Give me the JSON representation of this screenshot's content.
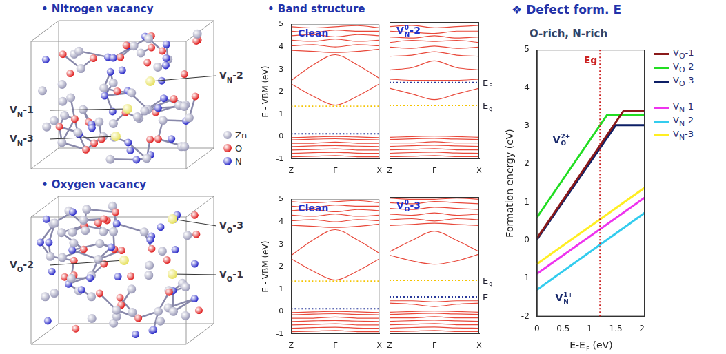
{
  "structures": [
    {
      "title": "• Nitrogen vacancy",
      "labels": [
        {
          "base": "V",
          "sub": "N",
          "tail": "-1"
        },
        {
          "base": "V",
          "sub": "N",
          "tail": "-2"
        },
        {
          "base": "V",
          "sub": "N",
          "tail": "-3"
        }
      ]
    },
    {
      "title": "• Oxygen vacancy",
      "labels": [
        {
          "base": "V",
          "sub": "O",
          "tail": "-1"
        },
        {
          "base": "V",
          "sub": "O",
          "tail": "-2"
        },
        {
          "base": "V",
          "sub": "O",
          "tail": "-3"
        }
      ]
    }
  ],
  "atom_legend": [
    {
      "label": "Zn",
      "color": "#9a9ab8"
    },
    {
      "label": "O",
      "color": "#e02020"
    },
    {
      "label": "N",
      "color": "#2a2ac8"
    }
  ],
  "band_structure_title": "• Band structure",
  "chart_data": [
    {
      "type": "line",
      "title": "Clean",
      "x": [
        0,
        0.5,
        1,
        1.5,
        2
      ],
      "xlim": [
        0,
        2
      ],
      "xticks": [
        {
          "value": 0,
          "label": "Z"
        },
        {
          "value": 1,
          "label": "Γ"
        },
        {
          "value": 2,
          "label": "X"
        }
      ],
      "ylim": [
        -1,
        5
      ],
      "yticks": [
        -1,
        0,
        1,
        2,
        3,
        4,
        5
      ],
      "y_label": "E - VBM (eV)",
      "grid": false,
      "series": [
        {
          "color": "#e8483a",
          "values": [
            -0.05,
            -0.02,
            0,
            -0.02,
            -0.05
          ]
        },
        {
          "color": "#e8483a",
          "values": [
            -0.15,
            -0.12,
            -0.1,
            -0.13,
            -0.15
          ]
        },
        {
          "color": "#e8483a",
          "values": [
            -0.3,
            -0.3,
            -0.25,
            -0.3,
            -0.3
          ]
        },
        {
          "color": "#e8483a",
          "values": [
            -0.45,
            -0.42,
            -0.4,
            -0.43,
            -0.45
          ]
        },
        {
          "color": "#e8483a",
          "values": [
            -0.6,
            -0.58,
            -0.55,
            -0.6,
            -0.6
          ]
        },
        {
          "color": "#e8483a",
          "values": [
            -0.75,
            -0.72,
            -0.7,
            -0.74,
            -0.75
          ]
        },
        {
          "color": "#e8483a",
          "values": [
            -0.9,
            -0.88,
            -0.85,
            -0.9,
            -0.9
          ]
        },
        {
          "color": "#e8483a",
          "values": [
            2.35,
            1.8,
            1.4,
            1.8,
            2.35
          ]
        },
        {
          "color": "#e8483a",
          "values": [
            2.5,
            3.2,
            3.65,
            3.2,
            2.6
          ]
        },
        {
          "color": "#e8483a",
          "values": [
            3.85,
            3.8,
            3.75,
            3.8,
            3.9
          ]
        },
        {
          "color": "#e8483a",
          "values": [
            4.05,
            4.1,
            4.0,
            4.1,
            4.05
          ]
        },
        {
          "color": "#e8483a",
          "values": [
            4.3,
            4.25,
            4.35,
            4.25,
            4.3
          ]
        },
        {
          "color": "#e8483a",
          "values": [
            4.5,
            4.55,
            4.45,
            4.55,
            4.5
          ]
        },
        {
          "color": "#e8483a",
          "values": [
            4.7,
            4.65,
            4.75,
            4.7,
            4.7
          ]
        },
        {
          "color": "#e8483a",
          "values": [
            4.9,
            4.85,
            4.9,
            4.95,
            4.85
          ]
        },
        {
          "color": "#f5c400",
          "line_style": "dotted",
          "values": [
            1.35,
            1.35,
            1.35,
            1.35,
            1.35
          ]
        },
        {
          "color": "#2a3a9a",
          "line_style": "dotted",
          "values": [
            0.12,
            0.12,
            0.12,
            0.12,
            0.12
          ]
        }
      ]
    },
    {
      "type": "line",
      "title": {
        "base": "V",
        "sub": "N",
        "sup": "0",
        "tail": "-2"
      },
      "x": [
        0,
        0.5,
        1,
        1.5,
        2
      ],
      "xlim": [
        0,
        2
      ],
      "xticks": [
        {
          "value": 0,
          "label": "Z"
        },
        {
          "value": 1,
          "label": "Γ"
        },
        {
          "value": 2,
          "label": "X"
        }
      ],
      "ylim": [
        -1,
        5
      ],
      "yticks": [
        -1,
        0,
        1,
        2,
        3,
        4,
        5
      ],
      "grid": false,
      "tick_labels": "x",
      "series": [
        {
          "color": "#e8483a",
          "values": [
            -0.05,
            -0.02,
            0,
            -0.02,
            -0.05
          ]
        },
        {
          "color": "#e8483a",
          "values": [
            -0.15,
            -0.12,
            -0.1,
            -0.13,
            -0.15
          ]
        },
        {
          "color": "#e8483a",
          "values": [
            -0.3,
            -0.3,
            -0.25,
            -0.3,
            -0.3
          ]
        },
        {
          "color": "#e8483a",
          "values": [
            -0.45,
            -0.42,
            -0.4,
            -0.43,
            -0.45
          ]
        },
        {
          "color": "#e8483a",
          "values": [
            -0.6,
            -0.58,
            -0.55,
            -0.6,
            -0.6
          ]
        },
        {
          "color": "#e8483a",
          "values": [
            -0.75,
            -0.72,
            -0.7,
            -0.74,
            -0.75
          ]
        },
        {
          "color": "#e8483a",
          "values": [
            -0.9,
            -0.88,
            -0.85,
            -0.9,
            -0.9
          ]
        },
        {
          "color": "#e8483a",
          "values": [
            2.1,
            1.85,
            1.6,
            1.85,
            2.1
          ]
        },
        {
          "color": "#e8483a",
          "values": [
            2.5,
            2.45,
            2.45,
            2.45,
            2.5
          ]
        },
        {
          "color": "#e8483a",
          "values": [
            2.9,
            3.0,
            3.3,
            3.0,
            2.9
          ]
        },
        {
          "color": "#e8483a",
          "values": [
            3.5,
            3.55,
            3.7,
            3.55,
            3.5
          ]
        },
        {
          "color": "#e8483a",
          "values": [
            3.9,
            3.85,
            3.95,
            3.85,
            3.9
          ]
        },
        {
          "color": "#e8483a",
          "values": [
            4.1,
            4.2,
            4.15,
            4.2,
            4.1
          ]
        },
        {
          "color": "#e8483a",
          "values": [
            4.35,
            4.3,
            4.4,
            4.3,
            4.35
          ]
        },
        {
          "color": "#e8483a",
          "values": [
            4.6,
            4.55,
            4.5,
            4.6,
            4.6
          ]
        },
        {
          "color": "#e8483a",
          "values": [
            4.8,
            4.85,
            4.75,
            4.8,
            4.85
          ]
        },
        {
          "color": "#f5c400",
          "line_style": "dotted",
          "label": {
            "base": "E",
            "sub": "g"
          },
          "values": [
            1.35,
            1.35,
            1.35,
            1.35,
            1.35
          ]
        },
        {
          "color": "#2a3a9a",
          "line_style": "dotted",
          "label": {
            "base": "E",
            "sub": "F"
          },
          "values": [
            2.35,
            2.35,
            2.35,
            2.35,
            2.35
          ]
        }
      ]
    },
    {
      "type": "line",
      "title": "Clean",
      "x": [
        0,
        0.5,
        1,
        1.5,
        2
      ],
      "xlim": [
        0,
        2
      ],
      "xticks": [
        {
          "value": 0,
          "label": "Z"
        },
        {
          "value": 1,
          "label": "Γ"
        },
        {
          "value": 2,
          "label": "X"
        }
      ],
      "ylim": [
        -1,
        5
      ],
      "yticks": [
        -1,
        0,
        1,
        2,
        3,
        4,
        5
      ],
      "y_label": "E - VBM (eV)",
      "grid": false,
      "series": [
        {
          "color": "#e8483a",
          "values": [
            -0.05,
            -0.02,
            0,
            -0.02,
            -0.05
          ]
        },
        {
          "color": "#e8483a",
          "values": [
            -0.15,
            -0.12,
            -0.1,
            -0.13,
            -0.15
          ]
        },
        {
          "color": "#e8483a",
          "values": [
            -0.3,
            -0.3,
            -0.25,
            -0.3,
            -0.3
          ]
        },
        {
          "color": "#e8483a",
          "values": [
            -0.45,
            -0.42,
            -0.4,
            -0.43,
            -0.45
          ]
        },
        {
          "color": "#e8483a",
          "values": [
            -0.6,
            -0.58,
            -0.55,
            -0.6,
            -0.6
          ]
        },
        {
          "color": "#e8483a",
          "values": [
            -0.75,
            -0.72,
            -0.7,
            -0.74,
            -0.75
          ]
        },
        {
          "color": "#e8483a",
          "values": [
            -0.9,
            -0.88,
            -0.85,
            -0.9,
            -0.9
          ]
        },
        {
          "color": "#e8483a",
          "values": [
            2.35,
            1.8,
            1.4,
            1.8,
            2.35
          ]
        },
        {
          "color": "#e8483a",
          "values": [
            2.5,
            3.2,
            3.65,
            3.2,
            2.6
          ]
        },
        {
          "color": "#e8483a",
          "values": [
            3.85,
            3.8,
            3.75,
            3.8,
            3.9
          ]
        },
        {
          "color": "#e8483a",
          "values": [
            4.05,
            4.1,
            4.0,
            4.1,
            4.05
          ]
        },
        {
          "color": "#e8483a",
          "values": [
            4.3,
            4.25,
            4.35,
            4.25,
            4.3
          ]
        },
        {
          "color": "#e8483a",
          "values": [
            4.5,
            4.55,
            4.45,
            4.55,
            4.5
          ]
        },
        {
          "color": "#e8483a",
          "values": [
            4.7,
            4.65,
            4.75,
            4.7,
            4.7
          ]
        },
        {
          "color": "#e8483a",
          "values": [
            4.9,
            4.85,
            4.9,
            4.95,
            4.85
          ]
        },
        {
          "color": "#f5c400",
          "line_style": "dotted",
          "values": [
            1.35,
            1.35,
            1.35,
            1.35,
            1.35
          ]
        },
        {
          "color": "#2a3a9a",
          "line_style": "dotted",
          "values": [
            0.12,
            0.12,
            0.12,
            0.12,
            0.12
          ]
        }
      ]
    },
    {
      "type": "line",
      "title": {
        "base": "V",
        "sub": "O",
        "sup": "0",
        "tail": "-3"
      },
      "x": [
        0,
        0.5,
        1,
        1.5,
        2
      ],
      "xlim": [
        0,
        2
      ],
      "xticks": [
        {
          "value": 0,
          "label": "Z"
        },
        {
          "value": 1,
          "label": "Γ"
        },
        {
          "value": 2,
          "label": "X"
        }
      ],
      "ylim": [
        -1,
        5
      ],
      "yticks": [
        -1,
        0,
        1,
        2,
        3,
        4,
        5
      ],
      "grid": false,
      "tick_labels": "x",
      "series": [
        {
          "color": "#e8483a",
          "values": [
            -0.05,
            -0.02,
            0,
            -0.02,
            -0.05
          ]
        },
        {
          "color": "#e8483a",
          "values": [
            -0.15,
            -0.12,
            -0.1,
            -0.13,
            -0.15
          ]
        },
        {
          "color": "#e8483a",
          "values": [
            -0.3,
            -0.3,
            -0.25,
            -0.3,
            -0.3
          ]
        },
        {
          "color": "#e8483a",
          "values": [
            -0.45,
            -0.42,
            -0.4,
            -0.43,
            -0.45
          ]
        },
        {
          "color": "#e8483a",
          "values": [
            -0.6,
            -0.58,
            -0.55,
            -0.6,
            -0.6
          ]
        },
        {
          "color": "#e8483a",
          "values": [
            -0.75,
            -0.72,
            -0.7,
            -0.74,
            -0.75
          ]
        },
        {
          "color": "#e8483a",
          "values": [
            -0.9,
            -0.88,
            -0.85,
            -0.9,
            -0.9
          ]
        },
        {
          "color": "#e8483a",
          "values": [
            0.35,
            0.3,
            0.2,
            0.3,
            0.35
          ]
        },
        {
          "color": "#e8483a",
          "values": [
            0.45,
            0.45,
            0.4,
            0.45,
            0.45
          ]
        },
        {
          "color": "#e8483a",
          "values": [
            2.45,
            2.2,
            2.05,
            2.2,
            2.5
          ]
        },
        {
          "color": "#e8483a",
          "values": [
            2.6,
            3.1,
            3.5,
            3.1,
            2.6
          ]
        },
        {
          "color": "#e8483a",
          "values": [
            3.75,
            3.8,
            3.85,
            3.8,
            3.75
          ]
        },
        {
          "color": "#e8483a",
          "values": [
            4.0,
            4.05,
            3.95,
            4.05,
            4.0
          ]
        },
        {
          "color": "#e8483a",
          "values": [
            4.25,
            4.2,
            4.3,
            4.2,
            4.25
          ]
        },
        {
          "color": "#e8483a",
          "values": [
            4.5,
            4.45,
            4.55,
            4.5,
            4.45
          ]
        },
        {
          "color": "#e8483a",
          "values": [
            4.75,
            4.7,
            4.8,
            4.75,
            4.7
          ]
        },
        {
          "color": "#e8483a",
          "values": [
            4.95,
            4.9,
            4.9,
            4.95,
            4.9
          ]
        },
        {
          "color": "#f5c400",
          "line_style": "dotted",
          "label": {
            "base": "E",
            "sub": "g"
          },
          "values": [
            1.35,
            1.35,
            1.35,
            1.35,
            1.35
          ]
        },
        {
          "color": "#2a3a9a",
          "line_style": "dotted",
          "label": {
            "base": "E",
            "sub": "F"
          },
          "values": [
            0.62,
            0.62,
            0.62,
            0.62,
            0.62
          ]
        }
      ]
    },
    {
      "type": "line",
      "title": "❖ Defect form. E",
      "subtitle": "O-rich, N-rich",
      "x_label": {
        "base": "E-E",
        "sub": "F",
        "tail": " (eV)"
      },
      "y_label": "Formation energy (eV)",
      "xlim": [
        0,
        2.05
      ],
      "xticks": [
        0,
        0.5,
        1,
        1.5,
        2
      ],
      "ylim": [
        -2,
        5
      ],
      "yticks": [
        -2,
        -1,
        0,
        1,
        2,
        3,
        4,
        5
      ],
      "grid": false,
      "legend": "right",
      "series": [
        {
          "name": {
            "base": "V",
            "sub": "O",
            "tail": "-1"
          },
          "color": "#8b1a1a",
          "x": [
            0,
            1.65,
            2.05
          ],
          "values": [
            0.05,
            3.4,
            3.4
          ]
        },
        {
          "name": {
            "base": "V",
            "sub": "O",
            "tail": "-2"
          },
          "color": "#22dd22",
          "x": [
            0,
            1.33,
            2.05
          ],
          "values": [
            0.6,
            3.28,
            3.28
          ]
        },
        {
          "name": {
            "base": "V",
            "sub": "O",
            "tail": "-3"
          },
          "color": "#0d1f66",
          "x": [
            0,
            1.5,
            2.05
          ],
          "values": [
            0.02,
            3.02,
            3.02
          ]
        },
        {
          "name": {
            "base": "V",
            "sub": "N",
            "tail": "-1"
          },
          "color": "#ee33ee",
          "x": [
            0,
            2.05
          ],
          "values": [
            -0.88,
            1.12
          ]
        },
        {
          "name": {
            "base": "V",
            "sub": "N",
            "tail": "-2"
          },
          "color": "#33ccee",
          "x": [
            0,
            2.05
          ],
          "values": [
            -1.3,
            0.72
          ]
        },
        {
          "name": {
            "base": "V",
            "sub": "N",
            "tail": "-3"
          },
          "color": "#ffee22",
          "x": [
            0,
            2.05
          ],
          "values": [
            -0.62,
            1.38
          ]
        }
      ],
      "vlines": [
        {
          "x": 1.2,
          "label": "Eg",
          "color": "#cc2222",
          "line_style": "dotted"
        }
      ],
      "annotations": [
        {
          "text": {
            "base": "V",
            "sub": "O",
            "sup": "2+"
          },
          "x": 0.3,
          "y": 2.55
        },
        {
          "text": {
            "base": "V",
            "sub": "N",
            "sup": "1+"
          },
          "x": 0.35,
          "y": -1.6
        }
      ]
    }
  ]
}
